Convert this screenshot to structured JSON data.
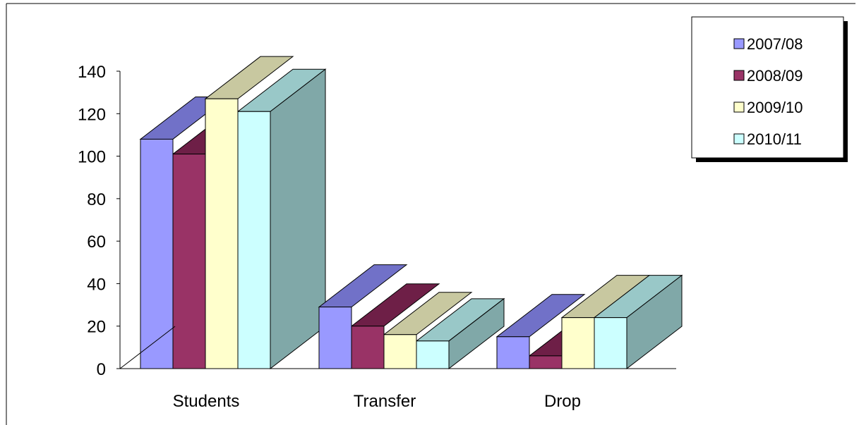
{
  "chart_data": {
    "type": "bar",
    "title": "",
    "xlabel": "",
    "ylabel": "",
    "categories": [
      "Students",
      "Transfer",
      "Drop"
    ],
    "series": [
      {
        "name": "2007/08",
        "values": [
          108,
          29,
          15
        ],
        "color": "#9999FF",
        "top_color": "#7171C8",
        "side_color": "#6666BF"
      },
      {
        "name": "2008/09",
        "values": [
          101,
          20,
          6
        ],
        "color": "#993366",
        "top_color": "#6E1F47",
        "side_color": "#7A2650"
      },
      {
        "name": "2009/10",
        "values": [
          127,
          16,
          24
        ],
        "color": "#FFFFCC",
        "top_color": "#C8C8A0",
        "side_color": "#BFBF99"
      },
      {
        "name": "2010/11",
        "values": [
          121,
          13,
          24
        ],
        "color": "#CCFFFF",
        "top_color": "#99C8C8",
        "side_color": "#80A8A8"
      }
    ],
    "ylim": [
      0,
      140
    ],
    "yticks": [
      "0",
      "20",
      "40",
      "60",
      "80",
      "100",
      "120",
      "140"
    ],
    "legend_position": "top-right",
    "grid": false
  }
}
